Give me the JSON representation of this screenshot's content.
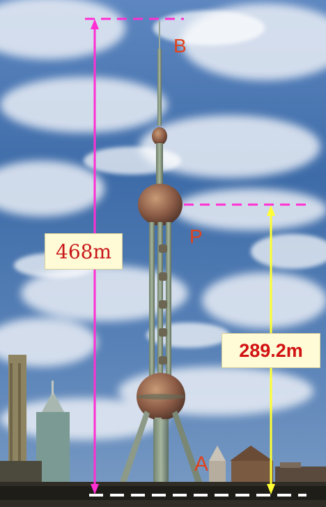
{
  "labels": {
    "total_height": "468m",
    "point_p_height": "289.2m",
    "point_b": "B",
    "point_p": "P",
    "point_a": "A"
  },
  "colors": {
    "total_height_line": "#ff2fd2",
    "dashed_top": "#ff2fd2",
    "p_height_line": "#ffff33",
    "ground_dash": "#ffffff",
    "label_text": "#d11212",
    "label_box": "#fffbd6",
    "point_letters": "#e0421c"
  },
  "icons": {
    "arrowheads": "arrow-up-icon / arrow-down-icon"
  }
}
